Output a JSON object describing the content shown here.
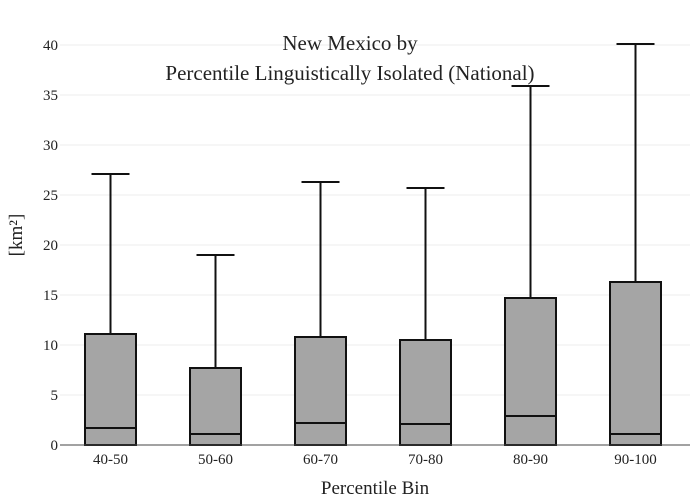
{
  "chart_data": {
    "type": "box",
    "title_lines": [
      "New Mexico  by",
      "Percentile Linguistically Isolated (National)"
    ],
    "xlabel": "Percentile Bin",
    "ylabel": "[km²]",
    "ylim": [
      0,
      41
    ],
    "yticks": [
      0,
      5,
      10,
      15,
      20,
      25,
      30,
      35,
      40
    ],
    "grid": true,
    "categories": [
      "40-50",
      "50-60",
      "60-70",
      "70-80",
      "80-90",
      "90-100"
    ],
    "boxes": [
      {
        "category": "40-50",
        "min": 0,
        "q1": 0,
        "median": 1.7,
        "q3": 11.1,
        "max": 27.1
      },
      {
        "category": "50-60",
        "min": 0,
        "q1": 0,
        "median": 1.1,
        "q3": 7.7,
        "max": 19.0
      },
      {
        "category": "60-70",
        "min": 0,
        "q1": 0,
        "median": 2.2,
        "q3": 10.8,
        "max": 26.3
      },
      {
        "category": "70-80",
        "min": 0,
        "q1": 0,
        "median": 2.1,
        "q3": 10.5,
        "max": 25.7
      },
      {
        "category": "80-90",
        "min": 0,
        "q1": 0,
        "median": 2.9,
        "q3": 14.7,
        "max": 35.9
      },
      {
        "category": "90-100",
        "min": 0,
        "q1": 0,
        "median": 1.1,
        "q3": 16.3,
        "max": 40.1
      }
    ],
    "colors": {
      "box_fill": "#a5a5a5",
      "box_stroke": "#111111",
      "grid": "#ececec"
    }
  }
}
